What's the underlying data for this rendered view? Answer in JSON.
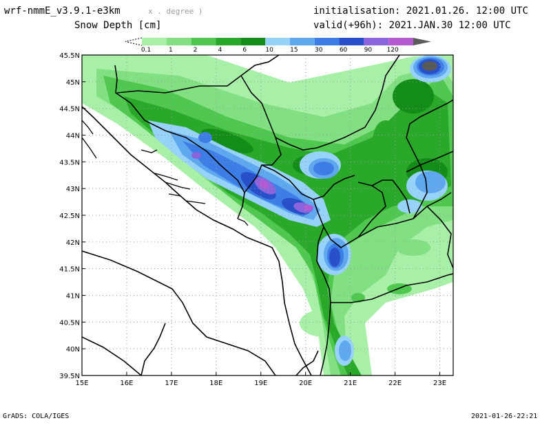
{
  "header": {
    "model": "wrf-nmmE_v3.9.1-e3km",
    "model_note": "x . degree )",
    "variable": "Snow Depth [cm]",
    "init_label": "initialisation:",
    "init_time": "2021.01.26. 12:00 UTC",
    "valid_label": "valid(+96h):",
    "valid_time": "2021.JAN.30 12:00 UTC"
  },
  "colorbar": {
    "labels": [
      "0.1",
      "1",
      "2",
      "4",
      "6",
      "10",
      "15",
      "30",
      "60",
      "90",
      "120"
    ],
    "colors": [
      "#a8f0a8",
      "#82e082",
      "#50c850",
      "#2aa82a",
      "#138c18",
      "#96d2fa",
      "#5fa8f0",
      "#3c7ee6",
      "#2850c8",
      "#8c64dc",
      "#b45ad2",
      "#5a5a5a"
    ]
  },
  "map": {
    "lon_labels": [
      "15E",
      "16E",
      "17E",
      "18E",
      "19E",
      "20E",
      "21E",
      "22E",
      "23E"
    ],
    "lat_labels": [
      "45.5N",
      "45N",
      "44.5N",
      "44N",
      "43.5N",
      "43N",
      "42.5N",
      "42N",
      "41.5N",
      "41N",
      "40.5N",
      "40N",
      "39.5N"
    ],
    "lon_range": [
      15,
      23.3
    ],
    "lat_range": [
      39.5,
      45.5
    ],
    "gridlines": "dotted"
  },
  "footer": {
    "credit": "GrADS: COLA/IGES",
    "timestamp": "2021-01-26-22:21"
  }
}
